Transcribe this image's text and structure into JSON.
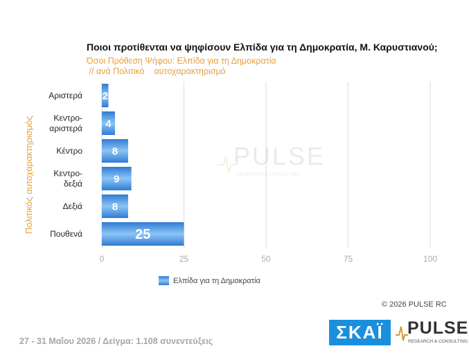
{
  "title": "Ποιοι προτίθενται να ψηφίσουν Ελπίδα για τη Δημοκρατία, Μ. Καρυστιανού;",
  "subtitle_line1": "Όσοι Πρόθεση Ψήφου: Ελπίδα για τη Δημοκρατία",
  "subtitle_line2": " // ανά Πολιτικό    αυτοχαρακτηρισμό",
  "copyright": "©  2026  PULSE RC",
  "footer": "27 - 31  Μαΐου 2026  /  Δείγμα:  1.108 συνεντεύξεις",
  "logos": {
    "skai": "ΣΚΑΪ",
    "pulse": "PULSE",
    "pulse_tagline": "RESEARCH & CONSULTING"
  },
  "watermark": {
    "word": "PULSE",
    "tagline": "RESEARCH & CONSULTING"
  },
  "colors": {
    "bar_dark": "#2f7bd4",
    "bar_light": "#8cc5f5",
    "subtitle": "#e8a03a",
    "skai_blue": "#1a8fde",
    "footer": "#a6a6a6",
    "grid": "#d9d9d9"
  },
  "chart_data": {
    "type": "bar",
    "orientation": "horizontal",
    "title": "Ποιοι προτίθενται να ψηφίσουν Ελπίδα για τη Δημοκρατία, Μ. Καρυστιανού;",
    "ylabel": "Πολιτικός αυτοχαρακτηρισμός",
    "xlabel": "",
    "categories": [
      [
        "Αριστερά"
      ],
      [
        "Κεντρο-",
        "αριστερά"
      ],
      [
        "Κέντρο"
      ],
      [
        "Κεντρο-",
        "δεξιά"
      ],
      [
        "Δεξιά"
      ],
      [
        "Πουθενά"
      ]
    ],
    "series": [
      {
        "name": "Ελπίδα για τη Δημοκρατία",
        "values": [
          2,
          4,
          8,
          9,
          8,
          25
        ]
      }
    ],
    "xlim": [
      0,
      100
    ],
    "xticks": [
      0,
      25,
      50,
      75,
      100
    ],
    "grid": true,
    "legend": "bottom-left"
  }
}
